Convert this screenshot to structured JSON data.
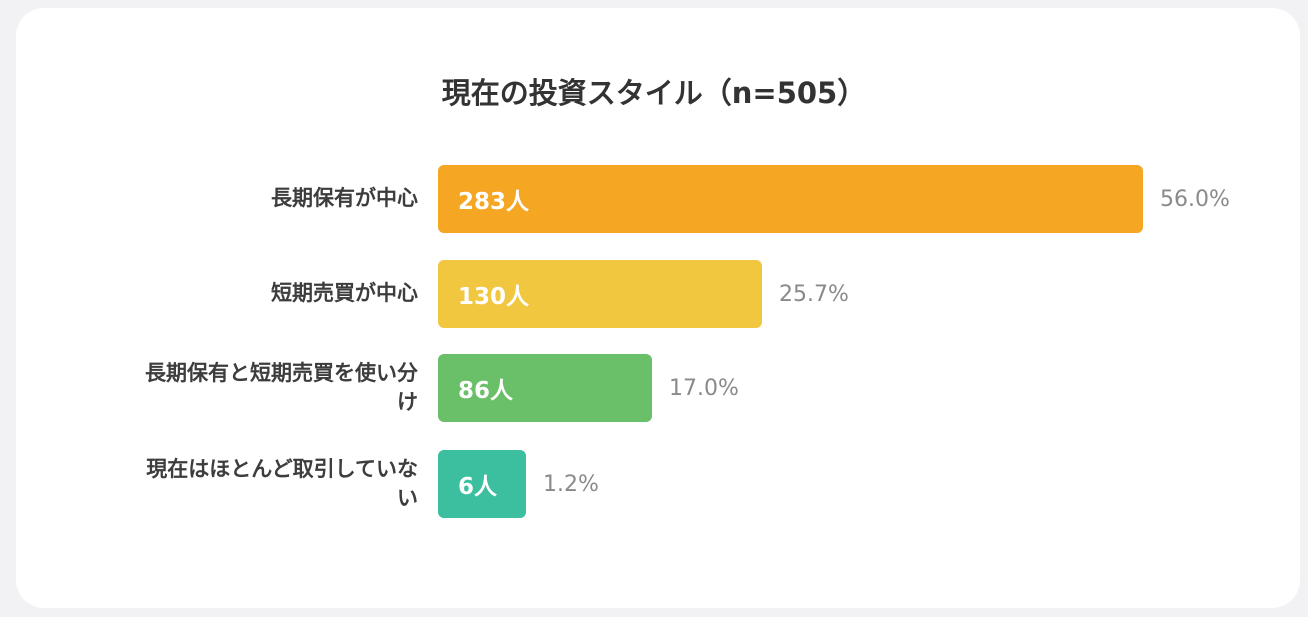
{
  "chart_data": {
    "type": "bar",
    "orientation": "horizontal",
    "title": "現在の投資スタイル（n=505）",
    "categories": [
      "長期保有が中心",
      "短期売買が中心",
      "長期保有と短期売買を使い分け",
      "現在はほとんど取引していない"
    ],
    "values": [
      283,
      130,
      86,
      6
    ],
    "count_labels": [
      "283人",
      "130人",
      "86人",
      "6人"
    ],
    "percent_labels": [
      "56.0%",
      "25.7%",
      "17.0%",
      "1.2%"
    ],
    "colors": [
      "#f5a623",
      "#f2c740",
      "#6abf69",
      "#3bbf9e"
    ],
    "xlim": [
      0,
      283
    ],
    "grid": false,
    "legend": "none"
  }
}
